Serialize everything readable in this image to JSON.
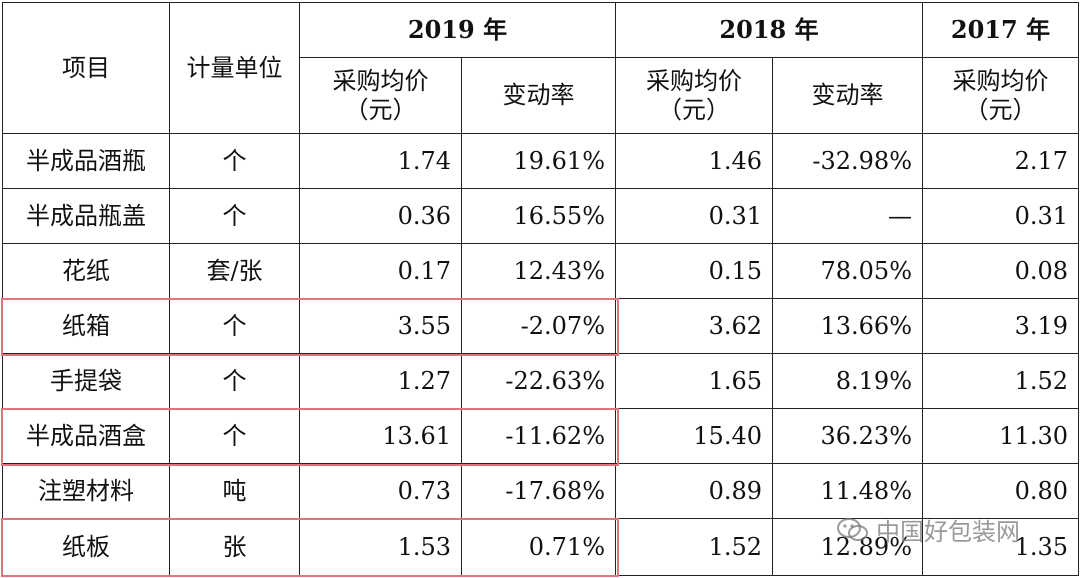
{
  "header": {
    "item": "项目",
    "unit": "计量单位",
    "years": [
      "2019 年",
      "2018 年",
      "2017 年"
    ],
    "price_line1": "采购均价",
    "price_line2": "（元）",
    "rate": "变动率"
  },
  "rows": [
    {
      "item": "半成品酒瓶",
      "unit": "个",
      "p2019": "1.74",
      "r2019": "19.61%",
      "p2018": "1.46",
      "r2018": "-32.98%",
      "p2017": "2.17"
    },
    {
      "item": "半成品瓶盖",
      "unit": "个",
      "p2019": "0.36",
      "r2019": "16.55%",
      "p2018": "0.31",
      "r2018": "—",
      "p2017": "0.31"
    },
    {
      "item": "花纸",
      "unit": "套/张",
      "p2019": "0.17",
      "r2019": "12.43%",
      "p2018": "0.15",
      "r2018": "78.05%",
      "p2017": "0.08"
    },
    {
      "item": "纸箱",
      "unit": "个",
      "p2019": "3.55",
      "r2019": "-2.07%",
      "p2018": "3.62",
      "r2018": "13.66%",
      "p2017": "3.19"
    },
    {
      "item": "手提袋",
      "unit": "个",
      "p2019": "1.27",
      "r2019": "-22.63%",
      "p2018": "1.65",
      "r2018": "8.19%",
      "p2017": "1.52"
    },
    {
      "item": "半成品酒盒",
      "unit": "个",
      "p2019": "13.61",
      "r2019": "-11.62%",
      "p2018": "15.40",
      "r2018": "36.23%",
      "p2017": "11.30"
    },
    {
      "item": "注塑材料",
      "unit": "吨",
      "p2019": "0.73",
      "r2019": "-17.68%",
      "p2018": "0.89",
      "r2018": "11.48%",
      "p2017": "0.80"
    },
    {
      "item": "纸板",
      "unit": "张",
      "p2019": "1.53",
      "r2019": "0.71%",
      "p2018": "1.52",
      "r2018": "12.89%",
      "p2017": "1.35"
    }
  ],
  "highlight_color": "#e0737b",
  "watermark": {
    "text": "中国好包装网",
    "icon": "wechat-icon"
  }
}
